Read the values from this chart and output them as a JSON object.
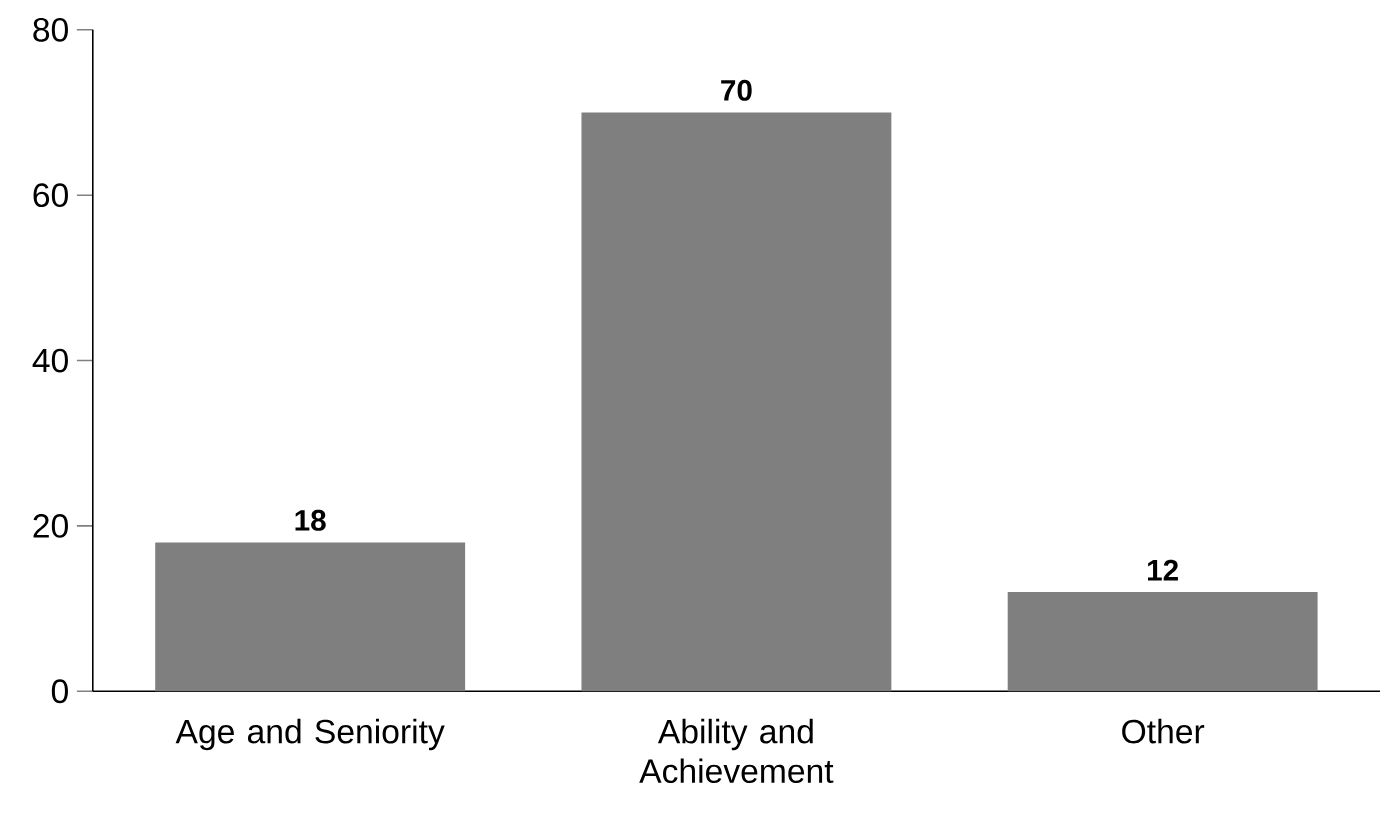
{
  "chart_data": {
    "type": "bar",
    "categories": [
      "Age and Seniority",
      "Ability and Achievement",
      "Other"
    ],
    "values": [
      18,
      70,
      12
    ],
    "color": "#7f7f7f",
    "ylim": [
      0,
      80
    ],
    "yticks": [
      0,
      20,
      40,
      60,
      80
    ],
    "data_labels": true,
    "grid": false
  }
}
